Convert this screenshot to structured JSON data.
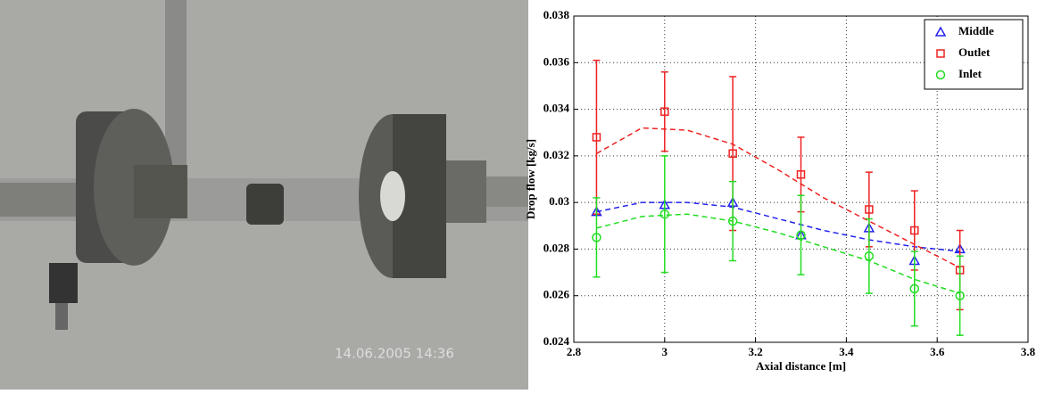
{
  "photo": {
    "timestamp": "14.06.2005 14:36"
  },
  "chart_data": {
    "type": "scatter",
    "xlabel": "Axial distance [m]",
    "ylabel": "Drop flow [kg/s]",
    "x": [
      2.85,
      3.0,
      3.15,
      3.3,
      3.45,
      3.55,
      3.65
    ],
    "fit_x": [
      2.85,
      2.95,
      3.05,
      3.15,
      3.25,
      3.35,
      3.45,
      3.55,
      3.65
    ],
    "series": [
      {
        "name": "Middle",
        "color": "#2222ee",
        "marker": "triangle",
        "values": [
          0.0296,
          0.0299,
          0.03,
          0.0286,
          0.0289,
          0.0275,
          0.028
        ],
        "fit": [
          0.0296,
          0.03,
          0.03,
          0.0298,
          0.0293,
          0.0288,
          0.0284,
          0.0281,
          0.0279
        ]
      },
      {
        "name": "Outlet",
        "color": "#ee2222",
        "marker": "square",
        "values": [
          0.0328,
          0.0339,
          0.0321,
          0.0312,
          0.0297,
          0.0288,
          0.0271
        ],
        "errors": [
          0.0033,
          0.0017,
          0.0033,
          0.0016,
          0.0016,
          0.0017,
          0.0017
        ],
        "fit": [
          0.0321,
          0.0332,
          0.0331,
          0.0325,
          0.0314,
          0.0302,
          0.0292,
          0.0282,
          0.0272
        ]
      },
      {
        "name": "Inlet",
        "color": "#22dd22",
        "marker": "circle",
        "values": [
          0.0285,
          0.0295,
          0.0292,
          0.0286,
          0.0277,
          0.0263,
          0.026
        ],
        "errors": [
          0.0017,
          0.0025,
          0.0017,
          0.0017,
          0.0016,
          0.0016,
          0.0017
        ],
        "fit": [
          0.0289,
          0.0294,
          0.0295,
          0.0292,
          0.0287,
          0.0281,
          0.0275,
          0.0267,
          0.0261
        ]
      }
    ],
    "xlim": [
      2.8,
      3.8
    ],
    "xticks": [
      2.8,
      3,
      3.2,
      3.4,
      3.6,
      3.8
    ],
    "ylim": [
      0.024,
      0.038
    ],
    "yticks": [
      0.024,
      0.026,
      0.028,
      0.03,
      0.032,
      0.034,
      0.036,
      0.038
    ],
    "grid": true,
    "legend": "upper right"
  }
}
